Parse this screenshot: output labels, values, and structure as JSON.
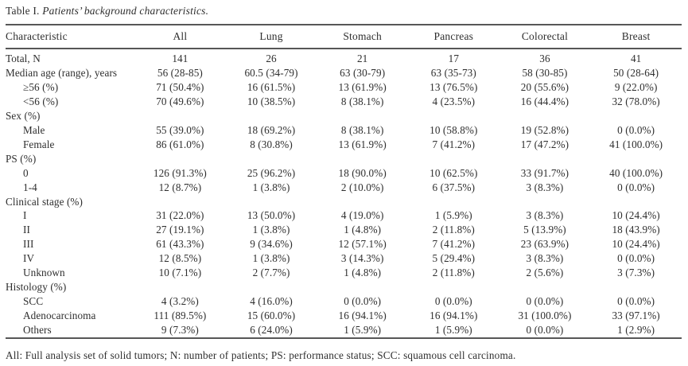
{
  "title": {
    "prefix": "Table I. ",
    "italic": "Patients’ background characteristics."
  },
  "colors": {
    "text": "#2e2e2e",
    "rule": "#575757",
    "background": "#ffffff"
  },
  "table": {
    "columns": [
      "Characteristic",
      "All",
      "Lung",
      "Stomach",
      "Pancreas",
      "Colorectal",
      "Breast"
    ],
    "rows": [
      {
        "label": "Total, N",
        "indent": 0,
        "values": [
          "141",
          "26",
          "21",
          "17",
          "36",
          "41"
        ]
      },
      {
        "label": "Median age (range), years",
        "indent": 0,
        "values": [
          "56 (28-85)",
          "60.5 (34-79)",
          "63 (30-79)",
          "63 (35-73)",
          "58 (30-85)",
          "50 (28-64)"
        ]
      },
      {
        "label": "≥56 (%)",
        "indent": 1,
        "values": [
          "71 (50.4%)",
          "16 (61.5%)",
          "13 (61.9%)",
          "13 (76.5%)",
          "20 (55.6%)",
          "9 (22.0%)"
        ]
      },
      {
        "label": "<56 (%)",
        "indent": 1,
        "values": [
          "70 (49.6%)",
          "10 (38.5%)",
          "8 (38.1%)",
          "4 (23.5%)",
          "16 (44.4%)",
          "32 (78.0%)"
        ]
      },
      {
        "label": "Sex (%)",
        "indent": 0,
        "values": [
          "",
          "",
          "",
          "",
          "",
          ""
        ]
      },
      {
        "label": "Male",
        "indent": 1,
        "values": [
          "55 (39.0%)",
          "18 (69.2%)",
          "8 (38.1%)",
          "10 (58.8%)",
          "19 (52.8%)",
          "0 (0.0%)"
        ]
      },
      {
        "label": "Female",
        "indent": 1,
        "values": [
          "86 (61.0%)",
          "8 (30.8%)",
          "13 (61.9%)",
          "7 (41.2%)",
          "17 (47.2%)",
          "41 (100.0%)"
        ]
      },
      {
        "label": "PS (%)",
        "indent": 0,
        "values": [
          "",
          "",
          "",
          "",
          "",
          ""
        ]
      },
      {
        "label": "0",
        "indent": 1,
        "values": [
          "126 (91.3%)",
          "25 (96.2%)",
          "18 (90.0%)",
          "10 (62.5%)",
          "33 (91.7%)",
          "40 (100.0%)"
        ]
      },
      {
        "label": "1-4",
        "indent": 1,
        "values": [
          "12 (8.7%)",
          "1 (3.8%)",
          "2 (10.0%)",
          "6 (37.5%)",
          "3 (8.3%)",
          "0 (0.0%)"
        ]
      },
      {
        "label": "Clinical stage (%)",
        "indent": 0,
        "values": [
          "",
          "",
          "",
          "",
          "",
          ""
        ]
      },
      {
        "label": "I",
        "indent": 1,
        "values": [
          "31 (22.0%)",
          "13 (50.0%)",
          "4 (19.0%)",
          "1 (5.9%)",
          "3 (8.3%)",
          "10 (24.4%)"
        ]
      },
      {
        "label": "II",
        "indent": 1,
        "values": [
          "27 (19.1%)",
          "1 (3.8%)",
          "1 (4.8%)",
          "2 (11.8%)",
          "5 (13.9%)",
          "18 (43.9%)"
        ]
      },
      {
        "label": "III",
        "indent": 1,
        "values": [
          "61 (43.3%)",
          "9 (34.6%)",
          "12 (57.1%)",
          "7 (41.2%)",
          "23 (63.9%)",
          "10 (24.4%)"
        ]
      },
      {
        "label": "IV",
        "indent": 1,
        "values": [
          "12 (8.5%)",
          "1 (3.8%)",
          "3 (14.3%)",
          "5 (29.4%)",
          "3 (8.3%)",
          "0 (0.0%)"
        ]
      },
      {
        "label": "Unknown",
        "indent": 1,
        "values": [
          "10 (7.1%)",
          "2 (7.7%)",
          "1 (4.8%)",
          "2 (11.8%)",
          "2 (5.6%)",
          "3 (7.3%)"
        ]
      },
      {
        "label": "Histology (%)",
        "indent": 0,
        "values": [
          "",
          "",
          "",
          "",
          "",
          ""
        ]
      },
      {
        "label": "SCC",
        "indent": 1,
        "values": [
          "4 (3.2%)",
          "4 (16.0%)",
          "0 (0.0%)",
          "0 (0.0%)",
          "0 (0.0%)",
          "0 (0.0%)"
        ]
      },
      {
        "label": "Adenocarcinoma",
        "indent": 1,
        "values": [
          "111 (89.5%)",
          "15 (60.0%)",
          "16 (94.1%)",
          "16 (94.1%)",
          "31 (100.0%)",
          "33 (97.1%)"
        ]
      },
      {
        "label": "Others",
        "indent": 1,
        "values": [
          "9 (7.3%)",
          "6 (24.0%)",
          "1 (5.9%)",
          "1 (5.9%)",
          "0 (0.0%)",
          "1 (2.9%)"
        ]
      }
    ]
  },
  "footnote": "All: Full analysis set of solid tumors; N: number of patients; PS: performance status; SCC: squamous cell carcinoma."
}
